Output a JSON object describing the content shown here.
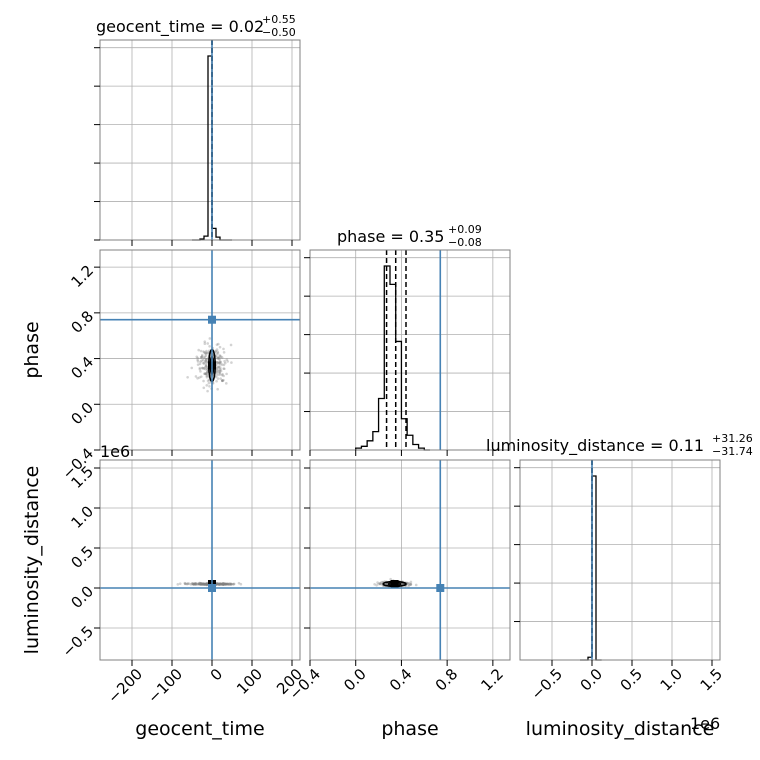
{
  "chart_data": {
    "type": "scatter",
    "subtype": "corner-plot",
    "colors": {
      "truth": "#4682b4",
      "hist": "#000000",
      "grid": "#b0b0b0",
      "samples": "#808080"
    },
    "grid": true,
    "parameters": [
      {
        "name": "geocent_time",
        "axis_label": "geocent_time",
        "title_name": "geocent_time",
        "title_median": "0.02",
        "title_plus": "+0.55",
        "title_minus": "−0.50",
        "range": [
          -280,
          220
        ],
        "ticks": [
          -200,
          -100,
          0,
          100,
          200
        ],
        "tick_labels": [
          "−200",
          "−100",
          "0",
          "100",
          "200"
        ],
        "truth": 0,
        "quantiles": [
          -0.48,
          0.02,
          0.57
        ],
        "hist": {
          "edges": [
            -50,
            -40,
            -30,
            -20,
            -10,
            0,
            10,
            20,
            30,
            40,
            50
          ],
          "counts": [
            0,
            0,
            0.5,
            2,
            95,
            6,
            1.5,
            0,
            0,
            0
          ]
        }
      },
      {
        "name": "phase",
        "axis_label": "phase",
        "title_name": "phase",
        "title_median": "0.35",
        "title_plus": "+0.09",
        "title_minus": "−0.08",
        "range": [
          -0.4,
          1.35
        ],
        "ticks": [
          -0.4,
          0.0,
          0.4,
          0.8,
          1.2
        ],
        "tick_labels": [
          "−0.4",
          "0.0",
          "0.4",
          "0.8",
          "1.2"
        ],
        "truth": 0.74,
        "quantiles": [
          0.27,
          0.35,
          0.44
        ],
        "hist": {
          "edges": [
            0.0,
            0.05,
            0.1,
            0.15,
            0.2,
            0.25,
            0.3,
            0.35,
            0.4,
            0.45,
            0.5,
            0.55,
            0.6,
            0.65
          ],
          "counts": [
            1,
            2,
            5,
            10,
            28,
            100,
            90,
            59,
            17,
            8,
            3,
            1,
            0
          ]
        }
      },
      {
        "name": "luminosity_distance",
        "axis_label": "luminosity_distance",
        "title_name": "luminosity_distance",
        "title_median": "0.11",
        "title_plus": "+31.26",
        "title_minus": "−31.74",
        "offset_label": "1e6",
        "range": [
          -900000,
          1600000
        ],
        "ticks": [
          -500000,
          0,
          500000,
          1000000,
          1500000
        ],
        "tick_labels": [
          "−0.5",
          "0.0",
          "0.5",
          "1.0",
          "1.5"
        ],
        "truth": 0,
        "quantiles": [
          -32,
          0.11,
          31
        ],
        "hist": {
          "edges": [
            -150000,
            -50000,
            0,
            50000,
            120000
          ],
          "counts": [
            0,
            1.5,
            100,
            0
          ]
        }
      }
    ],
    "panels_2d": [
      {
        "x": 0,
        "y": 1,
        "median_point": [
          0,
          0.34
        ],
        "core_half_width": [
          8,
          0.14
        ],
        "sample_spread": [
          35,
          0.18
        ]
      },
      {
        "x": 0,
        "y": 2,
        "median_point": [
          0,
          50000
        ],
        "core_half_width": [
          5,
          12000
        ],
        "sample_spread": [
          60,
          8000
        ]
      },
      {
        "x": 1,
        "y": 2,
        "median_point": [
          0.34,
          50000
        ],
        "core_half_width": [
          0.1,
          30000
        ],
        "sample_spread": [
          0.12,
          30000
        ]
      }
    ]
  }
}
